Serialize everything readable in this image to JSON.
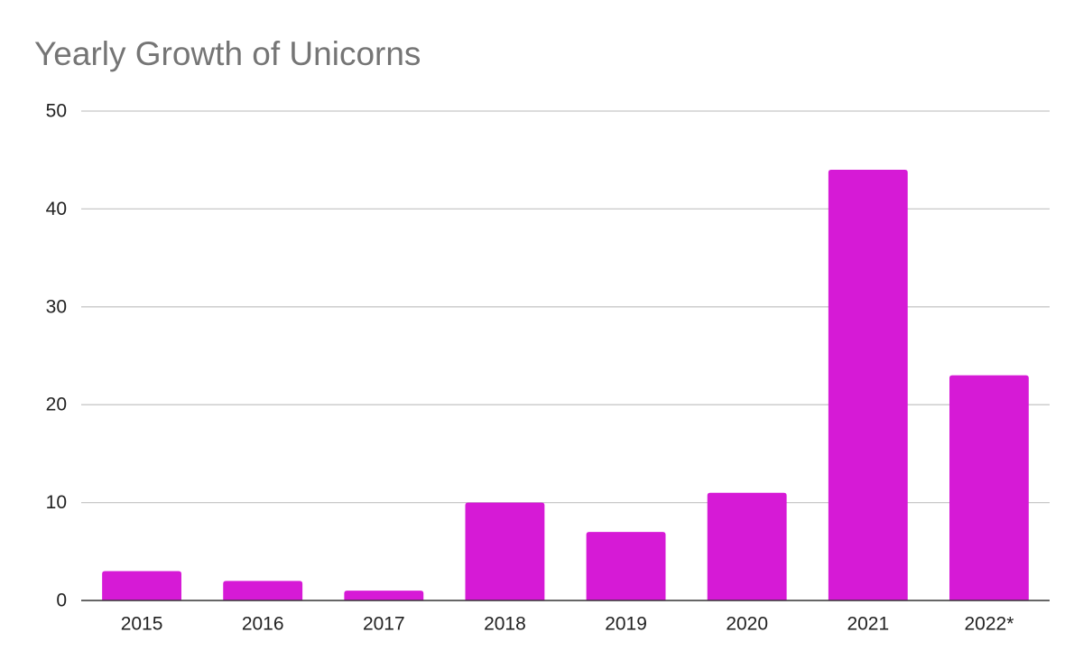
{
  "chart_data": {
    "type": "bar",
    "title": "Yearly Growth of Unicorns",
    "xlabel": "",
    "ylabel": "",
    "categories": [
      "2015",
      "2016",
      "2017",
      "2018",
      "2019",
      "2020",
      "2021",
      "2022*"
    ],
    "series": [
      {
        "name": "Unicorns",
        "values": [
          3,
          2,
          1,
          10,
          7,
          11,
          44,
          23
        ]
      }
    ],
    "ylim": [
      0,
      50
    ],
    "yticks": [
      0,
      10,
      20,
      30,
      40,
      50
    ],
    "grid": true,
    "legend": "none",
    "bar_color": "#d61ad6"
  }
}
